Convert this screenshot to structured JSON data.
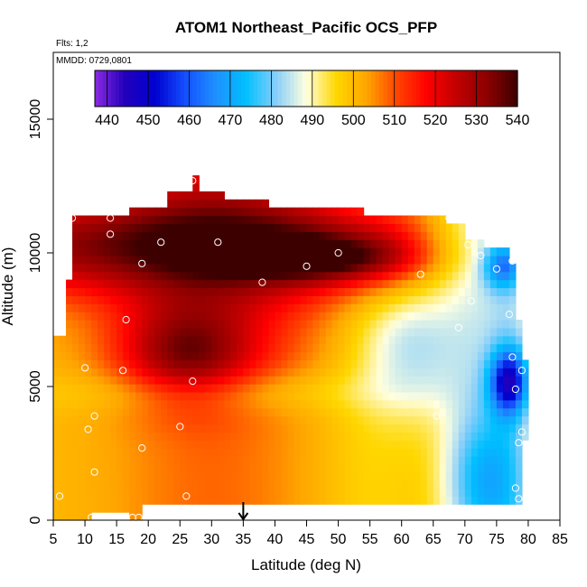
{
  "chart_data": {
    "type": "heatmap",
    "title": "ATOM1 Northeast_Pacific OCS_PFP",
    "annotations": {
      "flights": "Flts: 1,2",
      "dates": "MMDD: 0729,0801"
    },
    "xlabel": "Latitude (deg N)",
    "ylabel": "Altitude (m)",
    "xlim": [
      5,
      85
    ],
    "ylim": [
      0,
      17500
    ],
    "x_ticks": [
      "5",
      "10",
      "15",
      "20",
      "25",
      "30",
      "35",
      "40",
      "45",
      "50",
      "55",
      "60",
      "65",
      "70",
      "75",
      "80",
      "85"
    ],
    "y_ticks": [
      "0",
      "5000",
      "10000",
      "15000"
    ],
    "colorbar": {
      "min": 437,
      "max": 540,
      "ticks": [
        "440",
        "450",
        "460",
        "470",
        "480",
        "490",
        "500",
        "510",
        "520",
        "530",
        "540"
      ],
      "colors": [
        "#8a2be2",
        "#2200bb",
        "#0000d0",
        "#1450ff",
        "#1e90ff",
        "#00bfff",
        "#87cefa",
        "#ffffe0",
        "#ffd700",
        "#ffa500",
        "#ff4500",
        "#ff0000",
        "#c00000",
        "#8b0000",
        "#3d0000"
      ]
    },
    "marker_latitude": 35,
    "samples": [
      [
        8,
        11300
      ],
      [
        14,
        11300
      ],
      [
        14,
        10700
      ],
      [
        22,
        10400
      ],
      [
        31,
        10400
      ],
      [
        19,
        9600
      ],
      [
        45,
        9500
      ],
      [
        50,
        10000
      ],
      [
        63,
        9200
      ],
      [
        38,
        8900
      ],
      [
        27,
        12700
      ],
      [
        16.5,
        7500
      ],
      [
        10,
        5700
      ],
      [
        16,
        5600
      ],
      [
        27,
        5200
      ],
      [
        11.5,
        3900
      ],
      [
        10.5,
        3400
      ],
      [
        25,
        3500
      ],
      [
        19,
        2700
      ],
      [
        11.5,
        1800
      ],
      [
        6,
        900
      ],
      [
        26,
        900
      ],
      [
        11,
        100
      ],
      [
        17.5,
        100
      ],
      [
        18.5,
        100
      ],
      [
        67.5,
        11300
      ],
      [
        70.5,
        10300
      ],
      [
        72.5,
        9900
      ],
      [
        77.5,
        9700
      ],
      [
        75,
        9400
      ],
      [
        71,
        8200
      ],
      [
        69,
        7200
      ],
      [
        77,
        7700
      ],
      [
        77.5,
        6100
      ],
      [
        79,
        5600
      ],
      [
        78,
        4900
      ],
      [
        65.5,
        3900
      ],
      [
        79,
        3300
      ],
      [
        78.5,
        2900
      ],
      [
        78,
        1200
      ],
      [
        78.5,
        800
      ]
    ]
  }
}
